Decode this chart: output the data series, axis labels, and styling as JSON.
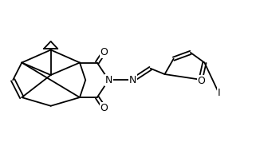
{
  "background": "#ffffff",
  "figsize": [
    3.21,
    1.88
  ],
  "dpi": 100,
  "lc": "#000000",
  "lw": 1.3,
  "fs": 9.0,
  "xlim": [
    0.0,
    6.6
  ],
  "ylim": [
    0.1,
    2.1
  ]
}
